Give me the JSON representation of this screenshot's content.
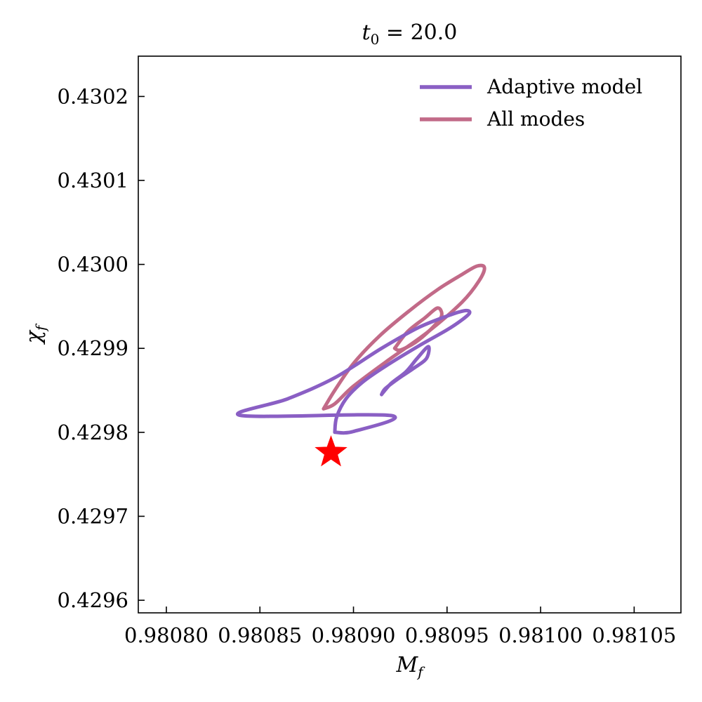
{
  "chart_data": {
    "type": "line",
    "title": {
      "var": "t",
      "sub": "0",
      "rest": " = 20.0"
    },
    "xlabel": {
      "var": "M",
      "sub": "f"
    },
    "ylabel": {
      "var": "χ",
      "sub": "f"
    },
    "xlim": [
      0.980785,
      0.981075
    ],
    "ylim": [
      0.429585,
      0.430248
    ],
    "xticks": [
      0.9808,
      0.98085,
      0.9809,
      0.98095,
      0.981,
      0.98105
    ],
    "xtick_labels": [
      "0.98080",
      "0.98085",
      "0.98090",
      "0.98095",
      "0.98100",
      "0.98105"
    ],
    "yticks": [
      0.4296,
      0.4297,
      0.4298,
      0.4299,
      0.43,
      0.4301,
      0.4302
    ],
    "ytick_labels": [
      "0.4296",
      "0.4297",
      "0.4298",
      "0.4299",
      "0.4300",
      "0.4301",
      "0.4302"
    ],
    "grid": false,
    "legend_position": "top-right",
    "series": [
      {
        "name": "Adaptive model",
        "color": "#8a5fc4",
        "contours": [
          [
            [
              0.98089,
              0.4298
            ],
            [
              0.980891,
              0.429818
            ],
            [
              0.980896,
              0.42984
            ],
            [
              0.980905,
              0.42986
            ],
            [
              0.980918,
              0.42988
            ],
            [
              0.980935,
              0.429903
            ],
            [
              0.98095,
              0.429922
            ],
            [
              0.980958,
              0.429934
            ],
            [
              0.980962,
              0.429942
            ],
            [
              0.98096,
              0.429945
            ],
            [
              0.980952,
              0.42994
            ],
            [
              0.980935,
              0.429925
            ],
            [
              0.980915,
              0.4299
            ],
            [
              0.98089,
              0.429865
            ],
            [
              0.980865,
              0.42984
            ],
            [
              0.98084,
              0.42982
            ],
            [
              0.98092,
              0.42982
            ],
            [
              0.9809,
              0.429801
            ],
            [
              0.98089,
              0.4298
            ]
          ],
          [
            [
              0.980915,
              0.429845
            ],
            [
              0.98092,
              0.429858
            ],
            [
              0.980928,
              0.429872
            ],
            [
              0.980934,
              0.429888
            ],
            [
              0.98094,
              0.429902
            ],
            [
              0.980939,
              0.429888
            ],
            [
              0.980932,
              0.429876
            ],
            [
              0.980924,
              0.429864
            ],
            [
              0.980917,
              0.429852
            ],
            [
              0.980915,
              0.429845
            ]
          ]
        ]
      },
      {
        "name": "All modes",
        "color": "#c26a88",
        "contours": [
          [
            [
              0.980884,
              0.429828
            ],
            [
              0.98089,
              0.42985
            ],
            [
              0.9809,
              0.429882
            ],
            [
              0.980914,
              0.429915
            ],
            [
              0.98093,
              0.429945
            ],
            [
              0.980945,
              0.42997
            ],
            [
              0.980958,
              0.429988
            ],
            [
              0.980966,
              0.429998
            ],
            [
              0.98097,
              0.429996
            ],
            [
              0.980967,
              0.42998
            ],
            [
              0.980958,
              0.429955
            ],
            [
              0.98094,
              0.42992
            ],
            [
              0.980918,
              0.429885
            ],
            [
              0.9809,
              0.429855
            ],
            [
              0.98089,
              0.429834
            ],
            [
              0.980884,
              0.429828
            ]
          ],
          [
            [
              0.980922,
              0.4299
            ],
            [
              0.980929,
              0.42992
            ],
            [
              0.980938,
              0.429936
            ],
            [
              0.980945,
              0.429948
            ],
            [
              0.980947,
              0.429938
            ],
            [
              0.980941,
              0.429922
            ],
            [
              0.980933,
              0.429907
            ],
            [
              0.980925,
              0.429898
            ],
            [
              0.980922,
              0.4299
            ]
          ]
        ]
      }
    ],
    "marker": {
      "x": 0.980888,
      "y": 0.429776,
      "shape": "star",
      "color": "#ff0000"
    }
  }
}
